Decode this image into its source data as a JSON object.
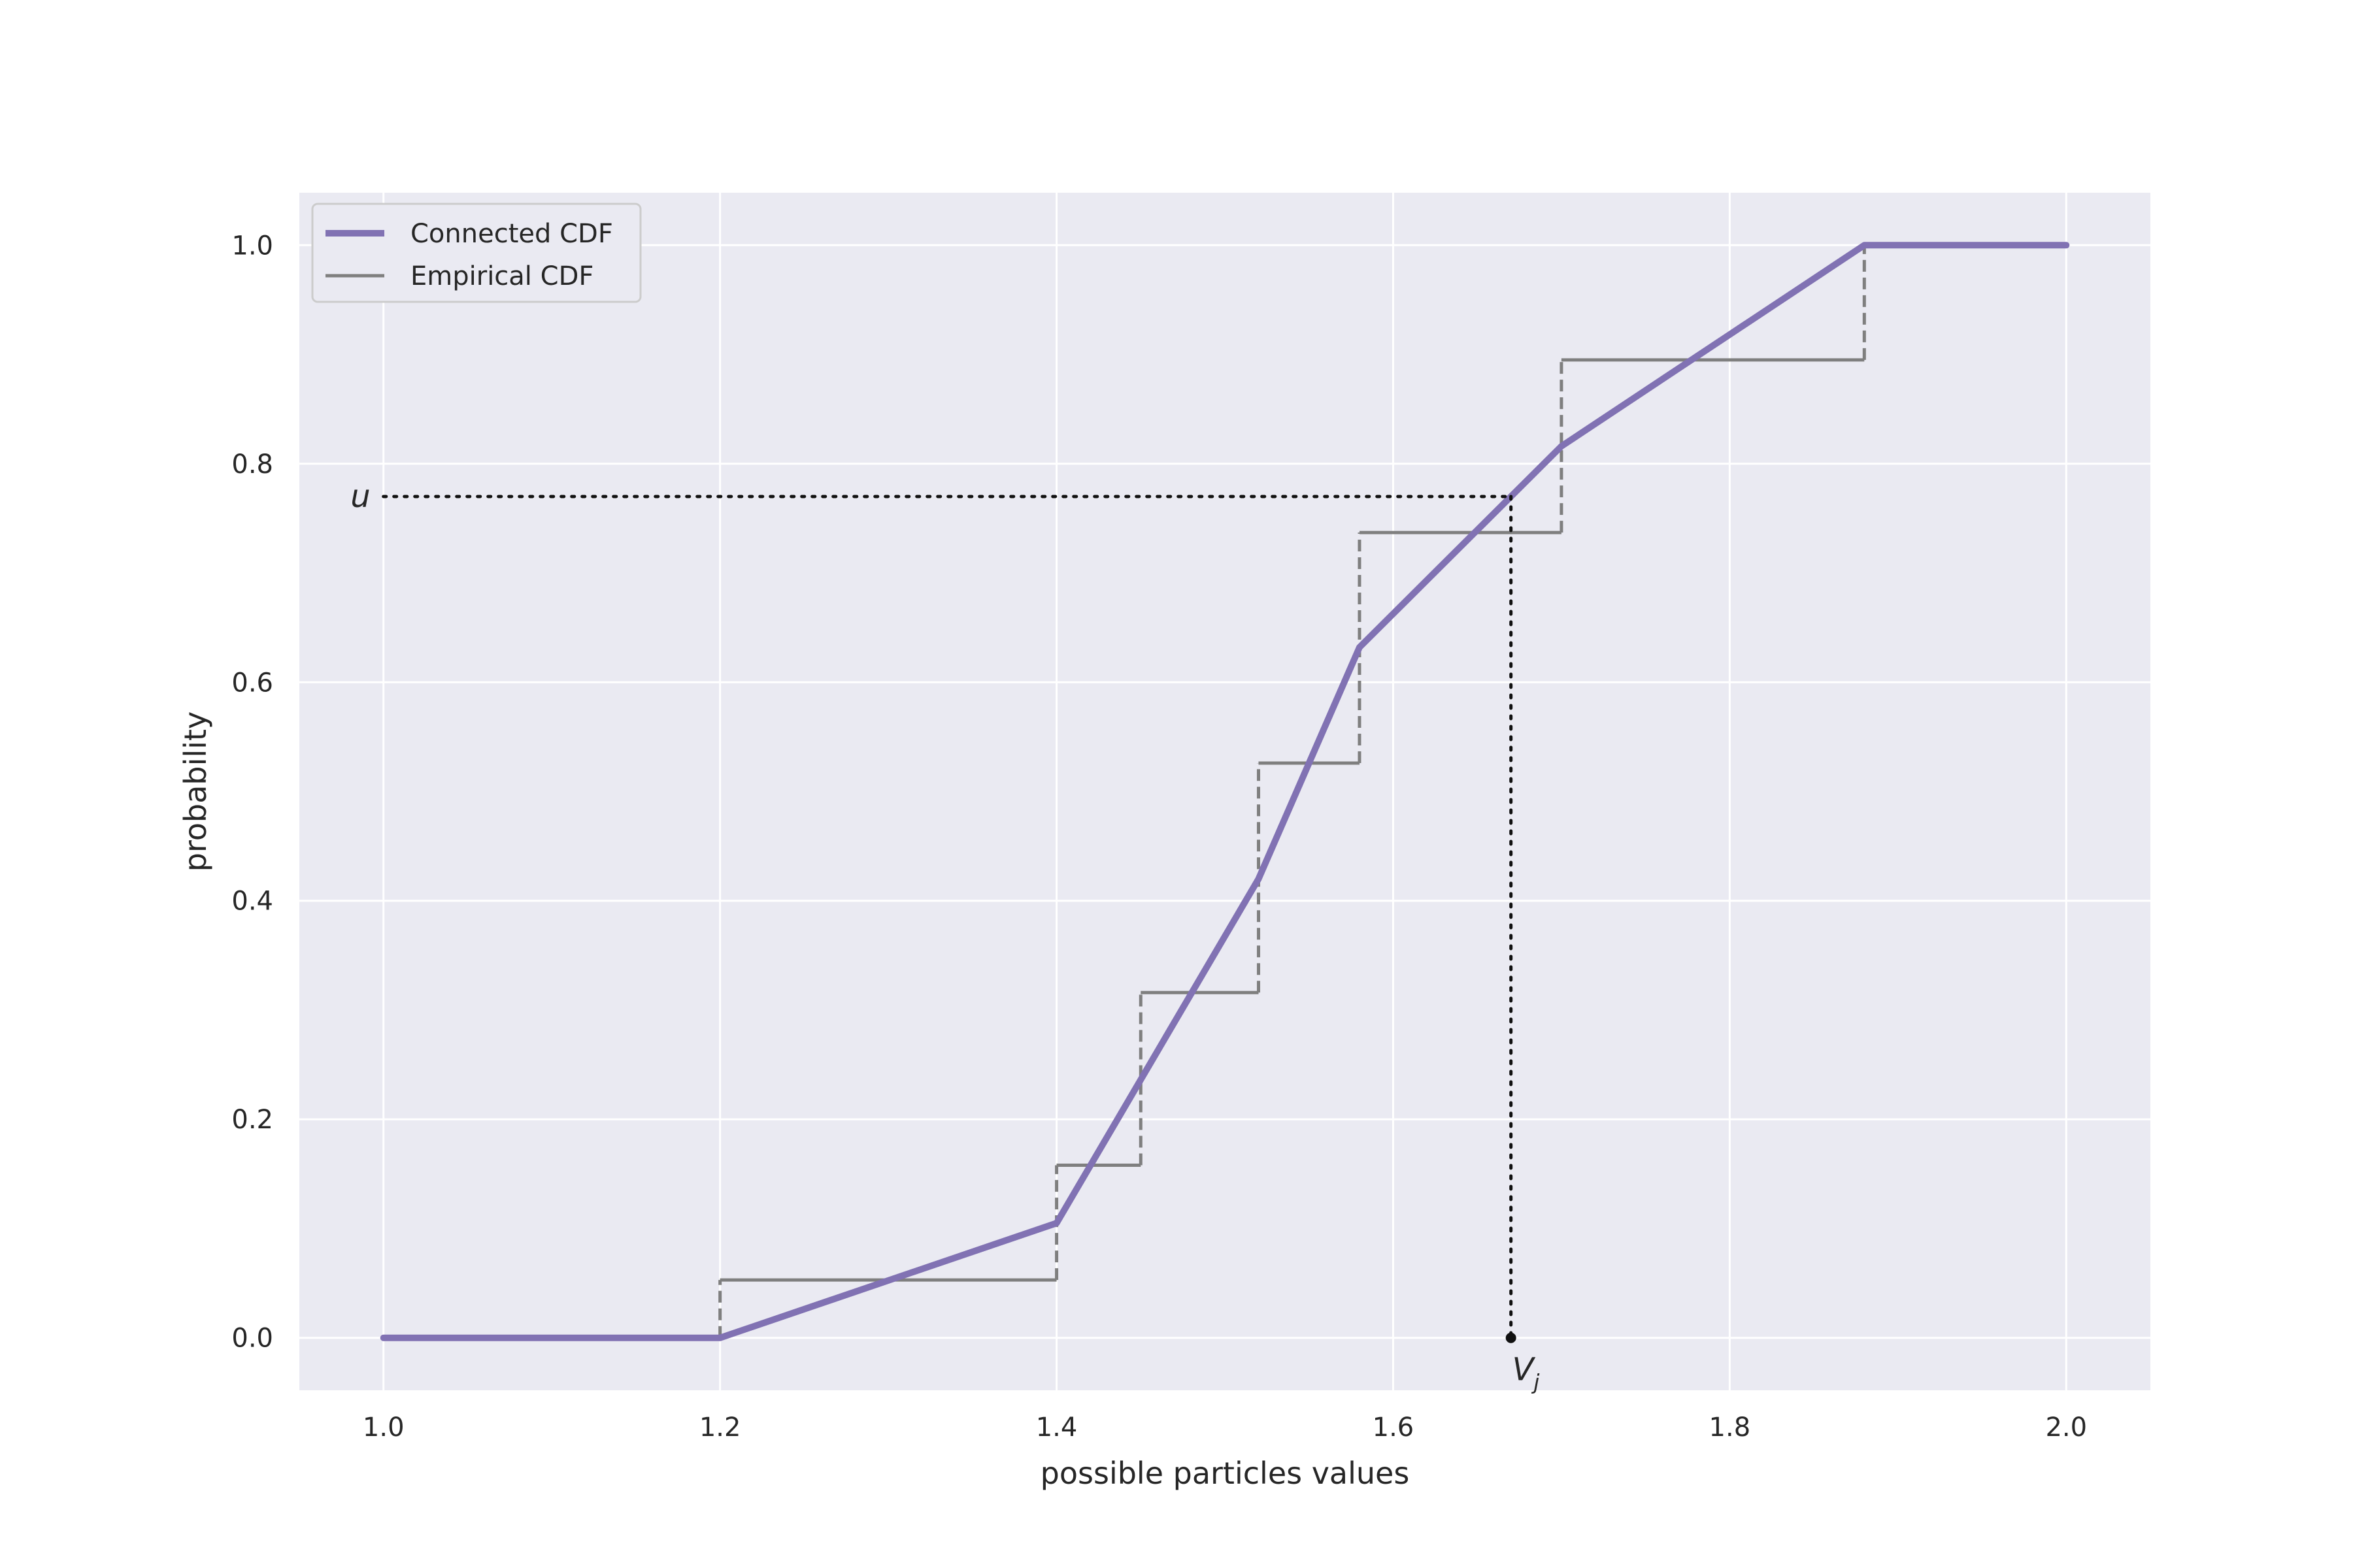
{
  "chart_data": {
    "type": "line",
    "title": "",
    "xlabel": "possible particles values",
    "ylabel": "probability",
    "xlim": [
      0.95,
      2.05
    ],
    "ylim": [
      -0.048,
      1.048
    ],
    "xticks": [
      1.0,
      1.2,
      1.4,
      1.6,
      1.8,
      2.0
    ],
    "xtick_labels": [
      "1.0",
      "1.2",
      "1.4",
      "1.6",
      "1.8",
      "2.0"
    ],
    "yticks": [
      0.0,
      0.2,
      0.4,
      0.6,
      0.8,
      1.0
    ],
    "ytick_labels": [
      "0.0",
      "0.2",
      "0.4",
      "0.6",
      "0.8",
      "1.0"
    ],
    "grid": true,
    "legend_position": "top-left",
    "background_color": "#eaeaf2",
    "series": [
      {
        "name": "Connected CDF",
        "color": "#8172b3",
        "style": "solid-thick",
        "x": [
          1.0,
          1.2,
          1.4,
          1.52,
          1.58,
          1.7,
          1.88,
          2.0
        ],
        "y": [
          0.0,
          0.0,
          0.105,
          0.42,
          0.632,
          0.816,
          1.0,
          1.0
        ]
      },
      {
        "name": "Empirical CDF",
        "color": "#7f7f7f",
        "style": "steps-post",
        "x": [
          1.0,
          1.2,
          1.4,
          1.45,
          1.52,
          1.58,
          1.7,
          1.88,
          2.0
        ],
        "y": [
          0.0,
          0.053,
          0.158,
          0.316,
          0.526,
          0.737,
          0.895,
          1.0,
          1.0
        ]
      }
    ],
    "annotations": [
      {
        "label": "u",
        "type": "horizontal-dotted",
        "y": 0.77,
        "x_from": 1.0,
        "x_to": 1.67
      },
      {
        "label": "V",
        "subscript": "j",
        "type": "vertical-dotted",
        "x": 1.67,
        "y_from": 0.0,
        "y_to": 0.77,
        "marker": true
      }
    ]
  }
}
